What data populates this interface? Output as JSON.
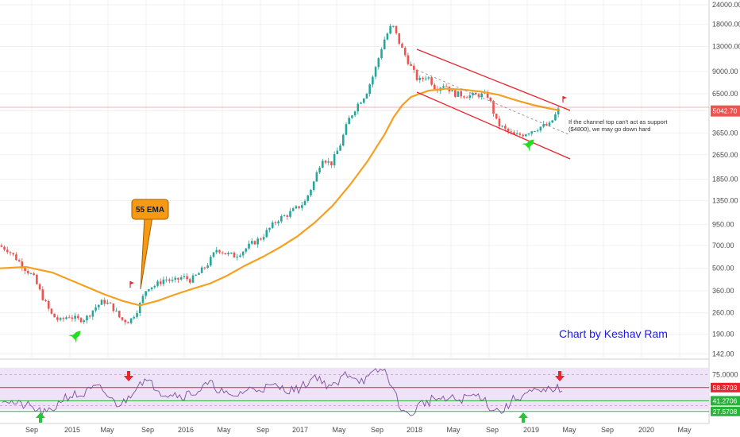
{
  "chart_data": {
    "type": "candlestick",
    "scale": "log",
    "price_axis": {
      "ticks": [
        142.0,
        190.0,
        260.0,
        360.0,
        500.0,
        700.0,
        950.0,
        1350.0,
        1850.0,
        2650.0,
        3650.0,
        5042.7,
        6500.0,
        9000.0,
        13000.0,
        18000.0,
        24000.0
      ],
      "tick_labels": [
        "142.00",
        "190.00",
        "260.00",
        "360.00",
        "500.00",
        "700.00",
        "950.00",
        "1350.00",
        "1850.00",
        "2650.00",
        "3650.00",
        "5042.70",
        "6500.00",
        "9000.00",
        "13000.00",
        "18000.00",
        "24000.00"
      ],
      "last_price": 5042.7,
      "last_price_label": "5042.70"
    },
    "time_axis": {
      "labels": [
        "Sep",
        "2015",
        "May",
        "Sep",
        "2016",
        "May",
        "Sep",
        "2017",
        "May",
        "Sep",
        "2018",
        "May",
        "Sep",
        "2019",
        "May",
        "Sep",
        "2020",
        "May"
      ]
    },
    "series": [
      {
        "name": "55 EMA",
        "color": "#f5a020"
      }
    ],
    "price_path": [
      [
        0,
        700
      ],
      [
        1,
        660
      ],
      [
        2,
        580
      ],
      [
        3,
        500
      ],
      [
        4,
        440
      ],
      [
        5,
        330
      ],
      [
        6,
        255
      ],
      [
        7,
        230
      ],
      [
        8,
        250
      ],
      [
        9,
        235
      ],
      [
        10,
        240
      ],
      [
        11,
        280
      ],
      [
        12,
        310
      ],
      [
        13,
        285
      ],
      [
        14,
        235
      ],
      [
        15,
        230
      ],
      [
        16,
        280
      ],
      [
        17,
        380
      ],
      [
        18,
        390
      ],
      [
        19,
        430
      ],
      [
        20,
        410
      ],
      [
        21,
        440
      ],
      [
        22,
        420
      ],
      [
        23,
        470
      ],
      [
        24,
        540
      ],
      [
        25,
        670
      ],
      [
        26,
        620
      ],
      [
        27,
        600
      ],
      [
        28,
        650
      ],
      [
        29,
        720
      ],
      [
        30,
        780
      ],
      [
        31,
        900
      ],
      [
        32,
        1030
      ],
      [
        33,
        1100
      ],
      [
        34,
        1200
      ],
      [
        35,
        1320
      ],
      [
        36,
        1750
      ],
      [
        37,
        2550
      ],
      [
        38,
        2300
      ],
      [
        39,
        3000
      ],
      [
        40,
        4400
      ],
      [
        41,
        5500
      ],
      [
        42,
        6500
      ],
      [
        43,
        9000
      ],
      [
        44,
        14000
      ],
      [
        45,
        18000
      ],
      [
        46,
        13000
      ],
      [
        47,
        10000
      ],
      [
        48,
        7800
      ],
      [
        49,
        8500
      ],
      [
        50,
        7000
      ],
      [
        51,
        7500
      ],
      [
        52,
        6500
      ],
      [
        53,
        6400
      ],
      [
        54,
        6300
      ],
      [
        55,
        6400
      ],
      [
        56,
        6300
      ],
      [
        57,
        4200
      ],
      [
        58,
        3800
      ],
      [
        59,
        3500
      ],
      [
        60,
        3600
      ],
      [
        61,
        3800
      ],
      [
        62,
        4000
      ],
      [
        63,
        4100
      ],
      [
        64,
        5100
      ]
    ],
    "ema_path": [
      [
        0,
        500
      ],
      [
        3,
        510
      ],
      [
        6,
        470
      ],
      [
        9,
        400
      ],
      [
        12,
        340
      ],
      [
        14,
        310
      ],
      [
        16,
        290
      ],
      [
        18,
        310
      ],
      [
        20,
        340
      ],
      [
        22,
        370
      ],
      [
        24,
        400
      ],
      [
        26,
        450
      ],
      [
        28,
        520
      ],
      [
        30,
        590
      ],
      [
        32,
        680
      ],
      [
        34,
        800
      ],
      [
        36,
        980
      ],
      [
        38,
        1250
      ],
      [
        40,
        1700
      ],
      [
        42,
        2400
      ],
      [
        44,
        3600
      ],
      [
        45,
        4600
      ],
      [
        46,
        5500
      ],
      [
        47,
        6200
      ],
      [
        49,
        6800
      ],
      [
        51,
        7000
      ],
      [
        53,
        6900
      ],
      [
        55,
        6700
      ],
      [
        57,
        6400
      ],
      [
        59,
        5900
      ],
      [
        61,
        5500
      ],
      [
        63,
        5200
      ],
      [
        64,
        5100
      ]
    ],
    "rsi": {
      "axis_ticks": [
        75.0,
        27.5708
      ],
      "axis_labels": [
        "75.0000",
        "27.5708"
      ],
      "markers": [
        {
          "value": 58.3703,
          "label": "58.3703",
          "color": "#e8252f"
        },
        {
          "value": 41.2706,
          "label": "41.2706",
          "color": "#26b43a"
        },
        {
          "value": 27.5708,
          "label": "27.5708",
          "color": "#26b43a"
        }
      ],
      "band": [
        30,
        70
      ]
    },
    "annotations": {
      "ema_label": "55 EMA",
      "channel_note": "If the channel top can't act as support ($4800), we may go down hard",
      "credit": "Chart by Keshav Ram"
    }
  },
  "colors": {
    "up": "#26a69a",
    "down": "#ef5350",
    "ema": "#f5a020",
    "channel": "#e8252f",
    "rsi_band": "#efe3f7",
    "rsi_line": "#7e4f9e",
    "credit": "#1a1ae6"
  },
  "icons": [
    "rocket-icon",
    "arrow-down-icon",
    "arrow-up-icon",
    "flag-icon"
  ]
}
